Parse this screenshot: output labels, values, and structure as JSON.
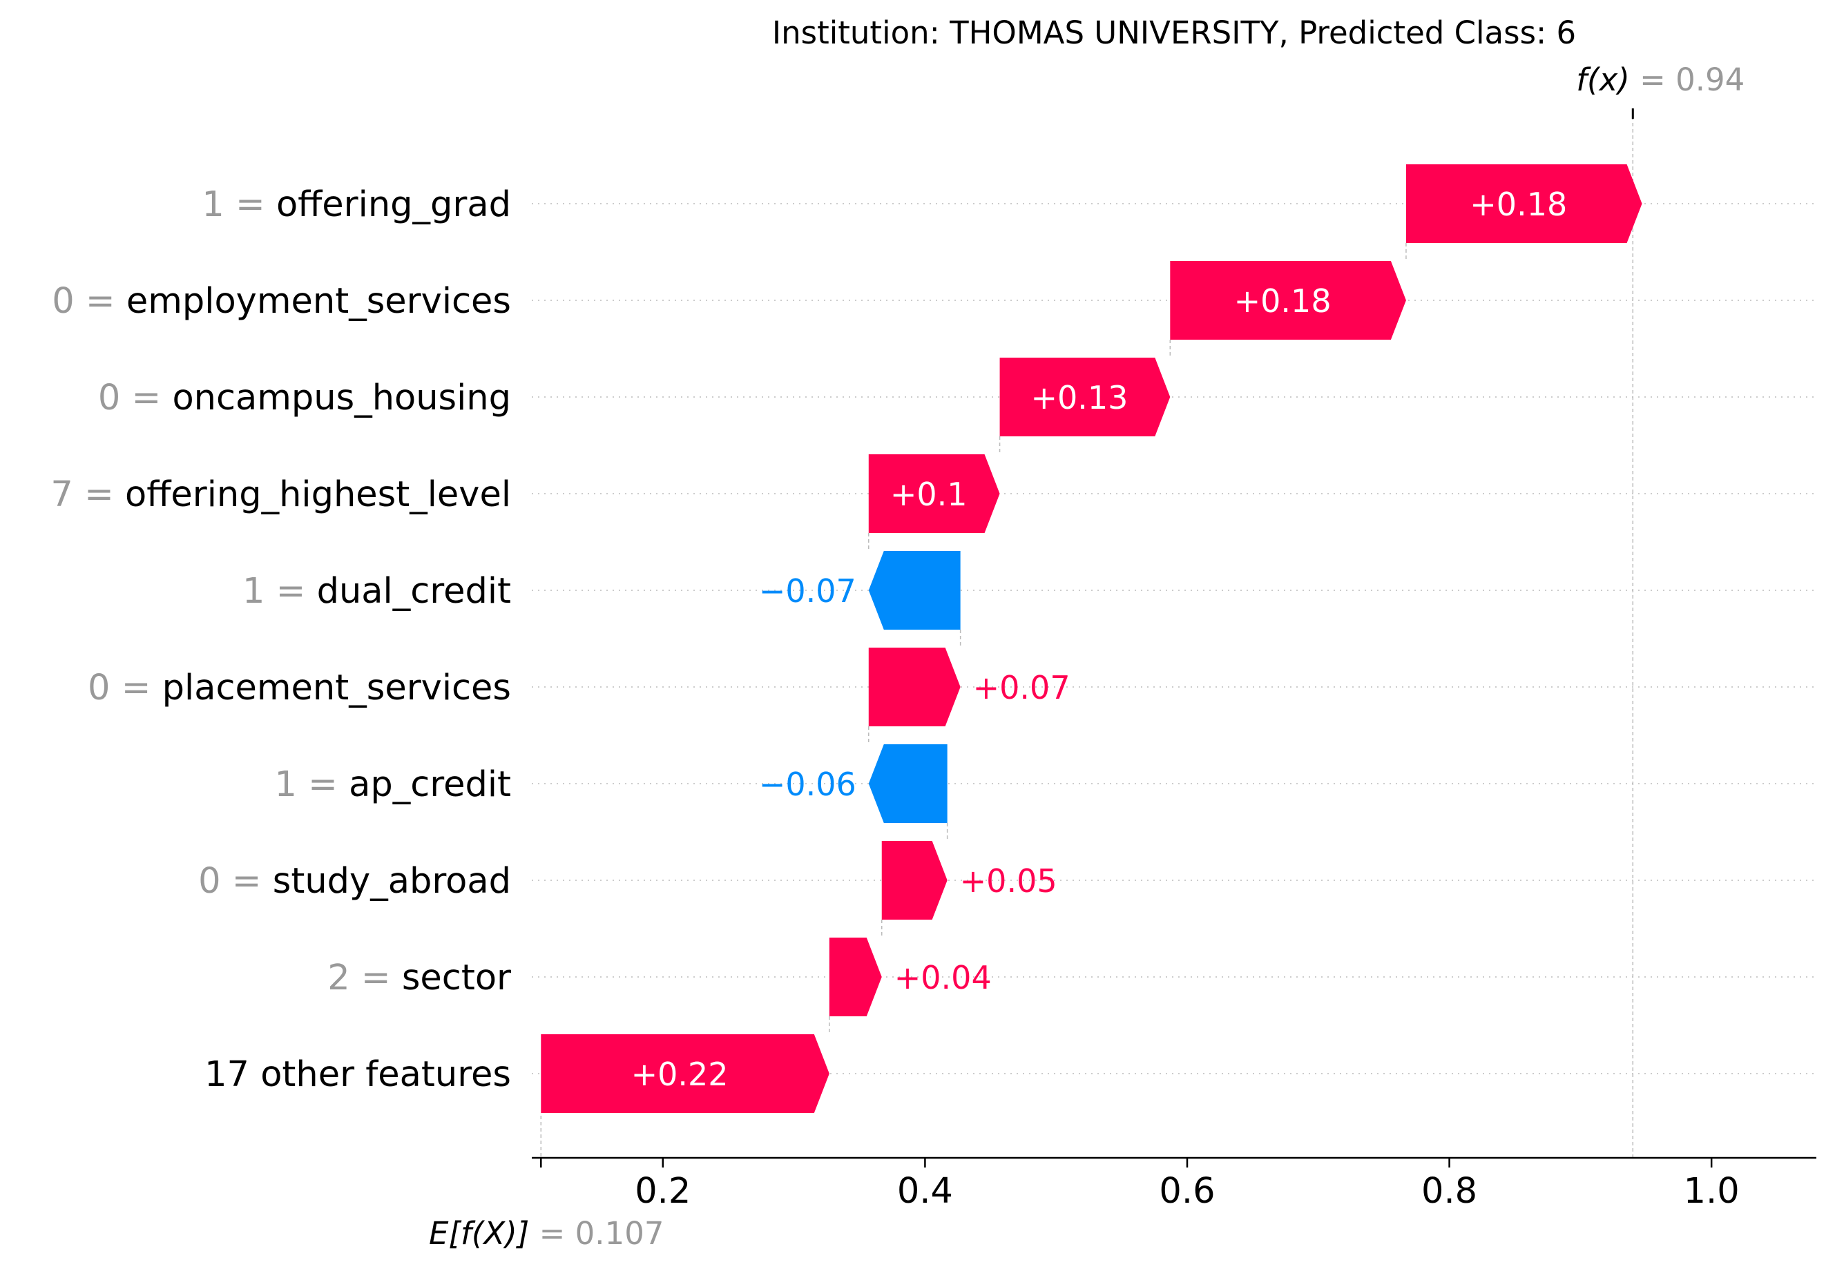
{
  "title": "Institution: THOMAS UNIVERSITY, Predicted Class: 6",
  "chart_data": {
    "type": "waterfall",
    "title": "Institution: THOMAS UNIVERSITY, Predicted Class: 6",
    "base_value": 0.107,
    "output_value": 0.94,
    "fx_label_name": "f(x)",
    "fx_label_value": "= 0.94",
    "efx_label_name": "E[f(X)]",
    "efx_label_value": "= 0.107",
    "xlim": [
      0.1,
      1.08
    ],
    "xticks": [
      0.2,
      0.4,
      0.6,
      0.8,
      1.0
    ],
    "xtick_labels": [
      "0.2",
      "0.4",
      "0.6",
      "0.8",
      "1.0"
    ],
    "grid": "horizontal dotted",
    "colors": {
      "positive": "#ff0051",
      "negative": "#008bfb",
      "muted": "#999999",
      "text": "#000000"
    },
    "features": [
      {
        "value": "1",
        "name": "offering_grad",
        "contribution": 0.18,
        "label": "+0.18"
      },
      {
        "value": "0",
        "name": "employment_services",
        "contribution": 0.18,
        "label": "+0.18"
      },
      {
        "value": "0",
        "name": "oncampus_housing",
        "contribution": 0.13,
        "label": "+0.13"
      },
      {
        "value": "7",
        "name": "offering_highest_level",
        "contribution": 0.1,
        "label": "+0.1"
      },
      {
        "value": "1",
        "name": "dual_credit",
        "contribution": -0.07,
        "label": "−0.07"
      },
      {
        "value": "0",
        "name": "placement_services",
        "contribution": 0.07,
        "label": "+0.07"
      },
      {
        "value": "1",
        "name": "ap_credit",
        "contribution": -0.06,
        "label": "−0.06"
      },
      {
        "value": "0",
        "name": "study_abroad",
        "contribution": 0.05,
        "label": "+0.05"
      },
      {
        "value": "2",
        "name": "sector",
        "contribution": 0.04,
        "label": "+0.04"
      },
      {
        "value": "",
        "name": "17 other features",
        "contribution": 0.22,
        "label": "+0.22"
      }
    ]
  }
}
